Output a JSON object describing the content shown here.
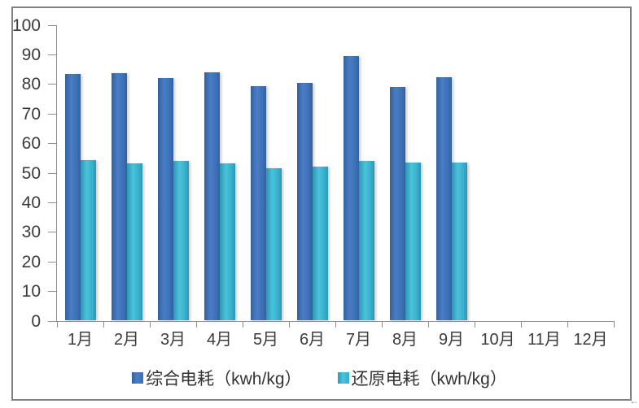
{
  "chart_data": {
    "type": "bar",
    "title": "",
    "xlabel": "",
    "ylabel": "",
    "ylim": [
      0,
      100
    ],
    "yticks": [
      0,
      10,
      20,
      30,
      40,
      50,
      60,
      70,
      80,
      90,
      100
    ],
    "grid": false,
    "legend_position": "bottom",
    "plot_background": "#ffffff",
    "axis_color": "#8e8e8e",
    "text_color": "#3b3b3b",
    "border_color": "#808080",
    "categories": [
      "1月",
      "2月",
      "3月",
      "4月",
      "5月",
      "6月",
      "7月",
      "8月",
      "9月",
      "10月",
      "11月",
      "12月"
    ],
    "series": [
      {
        "name": "综合电耗（kwh/kg）",
        "color": "#3b6fb6",
        "color_light": "#4a7dc4",
        "color_dark": "#32619f",
        "values": [
          83.6,
          83.9,
          82.1,
          84.2,
          79.5,
          80.6,
          89.6,
          79.0,
          82.4,
          null,
          null,
          null
        ]
      },
      {
        "name": "还原电耗（kwh/kg）",
        "color": "#36adca",
        "color_light": "#4cc2db",
        "color_dark": "#2b98b4",
        "values": [
          54.3,
          53.3,
          54.1,
          53.2,
          51.7,
          52.3,
          54.2,
          53.5,
          53.6,
          null,
          null,
          null
        ]
      }
    ]
  },
  "artifacts": {
    "corner_arrow": "←"
  }
}
